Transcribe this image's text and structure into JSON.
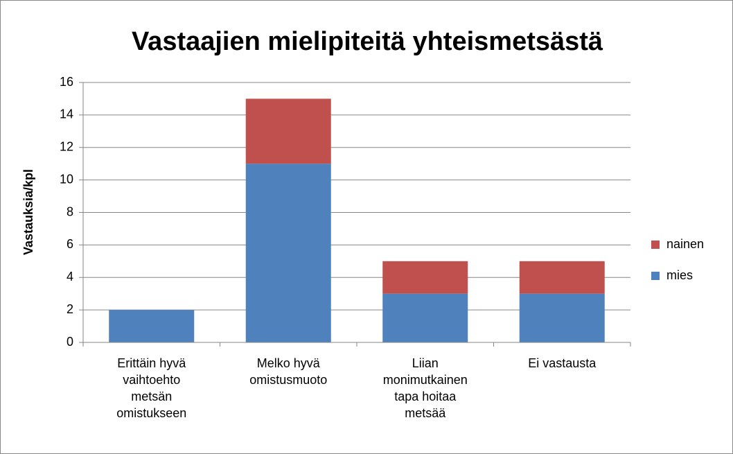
{
  "chart_data": {
    "type": "stacked_bar",
    "title": "Vastaajien mielipiteitä yhteismetsästä",
    "y_label": "Vastauksia/kpl",
    "categories": [
      "Erittäin hyvä vaihtoehto metsän omistukseen",
      "Melko hyvä omistusmuoto",
      "Liian monimutkainen tapa hoitaa metsää",
      "Ei vastausta"
    ],
    "series": [
      {
        "name": "mies",
        "color": "#4f81bd",
        "values": [
          2,
          11,
          3,
          3
        ]
      },
      {
        "name": "nainen",
        "color": "#c0504d",
        "values": [
          0,
          4,
          2,
          2
        ]
      }
    ],
    "ylim": [
      0,
      16
    ],
    "yticks": [
      0,
      2,
      4,
      6,
      8,
      10,
      12,
      14,
      16
    ],
    "grid": true,
    "legend": "right"
  }
}
